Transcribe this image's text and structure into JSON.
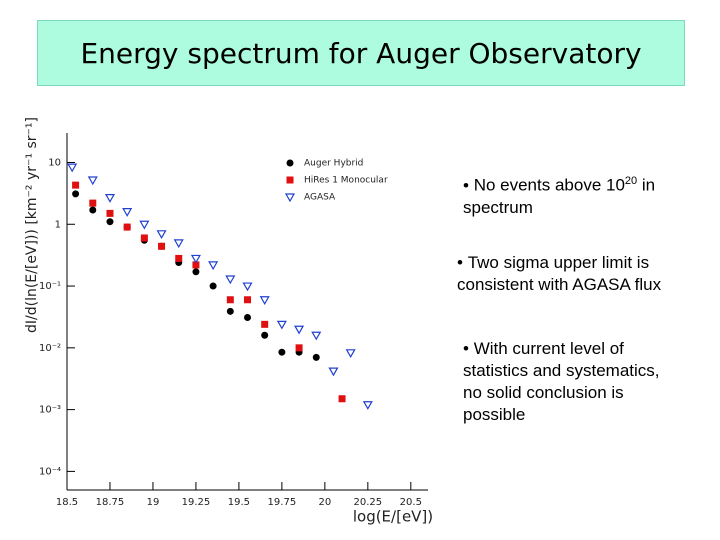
{
  "slide": {
    "title": "Energy spectrum for Auger Observatory",
    "bullets": [
      {
        "text": "No events above 10",
        "sup": "20",
        "tail": "in spectrum"
      },
      {
        "text": "Two sigma upper limit is consistent with AGASA flux"
      },
      {
        "text": "With current level of statistics and systematics, no solid conclusion is possible"
      }
    ]
  },
  "chart_data": {
    "type": "scatter",
    "ylog": true,
    "xlabel": "log(E/[eV])",
    "ylabel": "dI/d(ln(E/[eV])) [km⁻² yr⁻¹ sr⁻¹]",
    "xlim": [
      18.5,
      20.6
    ],
    "xticks": [
      18.5,
      18.75,
      19,
      19.25,
      19.5,
      19.75,
      20,
      20.25,
      20.5
    ],
    "ylim": [
      5e-05,
      30
    ],
    "yticks": [
      {
        "value": 0.0001,
        "label": "10⁻⁴"
      },
      {
        "value": 0.001,
        "label": "10⁻³"
      },
      {
        "value": 0.01,
        "label": "10⁻²"
      },
      {
        "value": 0.1,
        "label": "10⁻¹"
      },
      1,
      10
    ],
    "series": [
      {
        "name": "Auger Hybrid",
        "color": "#000000",
        "marker": "circle",
        "x": [
          18.55,
          18.65,
          18.75,
          18.85,
          18.95,
          19.05,
          19.15,
          19.25,
          19.35,
          19.45,
          19.55,
          19.65,
          19.75,
          19.85,
          19.95
        ],
        "values": [
          3.1,
          1.7,
          1.1,
          0.9,
          0.55,
          0.44,
          0.24,
          0.17,
          0.1,
          0.039,
          0.031,
          0.016,
          0.0085,
          0.0085,
          0.007
        ]
      },
      {
        "name": "HiRes 1   Monocular",
        "color": "#e01010",
        "marker": "square",
        "x": [
          18.55,
          18.65,
          18.75,
          18.85,
          18.95,
          19.05,
          19.15,
          19.25,
          19.45,
          19.55,
          19.65,
          19.85,
          20.1
        ],
        "values": [
          4.3,
          2.2,
          1.5,
          0.9,
          0.6,
          0.44,
          0.28,
          0.22,
          0.06,
          0.06,
          0.024,
          0.01,
          0.0015
        ]
      },
      {
        "name": "AGASA",
        "color": "#2040d0",
        "marker": "triangle",
        "x": [
          18.53,
          18.65,
          18.75,
          18.85,
          18.95,
          19.05,
          19.15,
          19.25,
          19.35,
          19.45,
          19.55,
          19.65,
          19.75,
          19.85,
          19.95,
          20.05,
          20.15,
          20.25
        ],
        "values": [
          8.4,
          5.2,
          2.7,
          1.6,
          1.0,
          0.7,
          0.5,
          0.28,
          0.22,
          0.13,
          0.1,
          0.06,
          0.024,
          0.02,
          0.016,
          0.0042,
          0.0083,
          0.0012
        ]
      }
    ],
    "legend": "upper-right"
  }
}
